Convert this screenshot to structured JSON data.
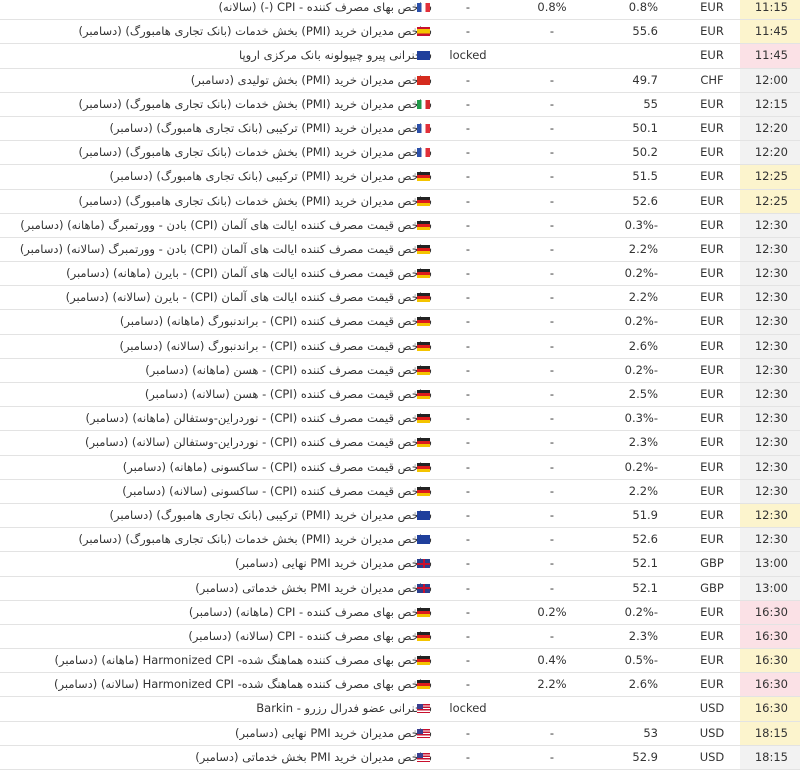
{
  "rows": [
    {
      "time": "11:15",
      "currency": "EUR",
      "previous": "0.8%",
      "forecast": "0.8%",
      "actual": "-",
      "event": "شاخص بهای مصرف کننده - CPI (-) (سالانه)"
    },
    {
      "time": "11:45",
      "currency": "EUR",
      "previous": "55.6",
      "forecast": "-",
      "actual": "-",
      "event": "شاخص مدیران خرید (PMI) بخش خدمات (بانک تجاری هامبورگ) (دسامبر)"
    },
    {
      "time": "11:45",
      "currency": "EUR",
      "actual": "locked",
      "event": "سخنرانی پیرو چیپولونه بانک مرکزی اروپا"
    },
    {
      "time": "12:00",
      "currency": "CHF",
      "previous": "49.7",
      "forecast": "-",
      "actual": "-",
      "event": "شاخص مدیران خرید (PMI) بخش تولیدی (دسامبر)"
    },
    {
      "time": "12:15",
      "currency": "EUR",
      "previous": "55",
      "forecast": "-",
      "actual": "-",
      "event": "شاخص مدیران خرید (PMI) بخش خدمات (بانک تجاری هامبورگ) (دسامبر)"
    },
    {
      "time": "12:20",
      "currency": "EUR",
      "previous": "50.1",
      "forecast": "-",
      "actual": "-",
      "event": "شاخص مدیران خرید (PMI) ترکیبی (بانک تجاری هامبورگ) (دسامبر)"
    },
    {
      "time": "12:20",
      "currency": "EUR",
      "previous": "50.2",
      "forecast": "-",
      "actual": "-",
      "event": "شاخص مدیران خرید (PMI) بخش خدمات (بانک تجاری هامبورگ) (دسامبر)"
    },
    {
      "time": "12:25",
      "currency": "EUR",
      "previous": "51.5",
      "forecast": "-",
      "actual": "-",
      "event": "شاخص مدیران خرید (PMI) ترکیبی (بانک تجاری هامبورگ) (دسامبر)"
    },
    {
      "time": "12:25",
      "currency": "EUR",
      "previous": "52.6",
      "forecast": "-",
      "actual": "-",
      "event": "شاخص مدیران خرید (PMI) بخش خدمات (بانک تجاری هامبورگ) (دسامبر)"
    },
    {
      "time": "12:30",
      "currency": "EUR",
      "previous": "0.3%-",
      "forecast": "-",
      "actual": "-",
      "event": "شاخص قیمت مصرف کننده ایالت های آلمان (CPI) بادن - وورتمبرگ (ماهانه) (دسامبر)"
    },
    {
      "time": "12:30",
      "currency": "EUR",
      "previous": "2.2%",
      "forecast": "-",
      "actual": "-",
      "event": "شاخص قیمت مصرف کننده ایالت های آلمان (CPI) بادن - وورتمبرگ (سالانه) (دسامبر)"
    },
    {
      "time": "12:30",
      "currency": "EUR",
      "previous": "0.2%-",
      "forecast": "-",
      "actual": "-",
      "event": "شاخص قیمت مصرف کننده ایالت های آلمان (CPI) - بایرن (ماهانه) (دسامبر)"
    },
    {
      "time": "12:30",
      "currency": "EUR",
      "previous": "2.2%",
      "forecast": "-",
      "actual": "-",
      "event": "شاخص قیمت مصرف کننده ایالت های آلمان (CPI) - بایرن (سالانه) (دسامبر)"
    },
    {
      "time": "12:30",
      "currency": "EUR",
      "previous": "0.2%-",
      "forecast": "-",
      "actual": "-",
      "event": "شاخص قیمت مصرف کننده (CPI) - براندنبورگ (ماهانه) (دسامبر)"
    },
    {
      "time": "12:30",
      "currency": "EUR",
      "previous": "2.6%",
      "forecast": "-",
      "actual": "-",
      "event": "شاخص قیمت مصرف کننده (CPI) - براندنبورگ (سالانه) (دسامبر)"
    },
    {
      "time": "12:30",
      "currency": "EUR",
      "previous": "0.2%-",
      "forecast": "-",
      "actual": "-",
      "event": "شاخص قیمت مصرف کننده (CPI) - هسن (ماهانه) (دسامبر)"
    },
    {
      "time": "12:30",
      "currency": "EUR",
      "previous": "2.5%",
      "forecast": "-",
      "actual": "-",
      "event": "شاخص قیمت مصرف کننده (CPI) - هسن (سالانه) (دسامبر)"
    },
    {
      "time": "12:30",
      "currency": "EUR",
      "previous": "0.3%-",
      "forecast": "-",
      "actual": "-",
      "event": "شاخص قیمت مصرف کننده (CPI) - نوردراین-وستفالن (ماهانه) (دسامبر)"
    },
    {
      "time": "12:30",
      "currency": "EUR",
      "previous": "2.3%",
      "forecast": "-",
      "actual": "-",
      "event": "شاخص قیمت مصرف کننده (CPI) - نوردراین-وستفالن (سالانه) (دسامبر)"
    },
    {
      "time": "12:30",
      "currency": "EUR",
      "previous": "0.2%-",
      "forecast": "-",
      "actual": "-",
      "event": "شاخص قیمت مصرف کننده (CPI) - ساکسونی (ماهانه) (دسامبر)"
    },
    {
      "time": "12:30",
      "currency": "EUR",
      "previous": "2.2%",
      "forecast": "-",
      "actual": "-",
      "event": "شاخص قیمت مصرف کننده (CPI) - ساکسونی (سالانه) (دسامبر)"
    },
    {
      "time": "12:30",
      "currency": "EUR",
      "previous": "51.9",
      "forecast": "-",
      "actual": "-",
      "event": "شاخص مدیران خرید (PMI) ترکیبی (بانک تجاری هامبورگ) (دسامبر)"
    },
    {
      "time": "12:30",
      "currency": "EUR",
      "previous": "52.6",
      "forecast": "-",
      "actual": "-",
      "event": "شاخص مدیران خرید (PMI) بخش خدمات (بانک تجاری هامبورگ) (دسامبر)"
    },
    {
      "time": "13:00",
      "currency": "GBP",
      "previous": "52.1",
      "forecast": "-",
      "actual": "-",
      "event": "شاخص مدیران خرید PMI نهایی (دسامبر)"
    },
    {
      "time": "13:00",
      "currency": "GBP",
      "previous": "52.1",
      "forecast": "-",
      "actual": "-",
      "event": "شاخص مدیران خرید PMI بخش خدماتی (دسامبر)"
    },
    {
      "time": "16:30",
      "currency": "EUR",
      "previous": "0.2%-",
      "forecast": "0.2%",
      "actual": "-",
      "event": "شاخص بهای مصرف کننده - CPI (ماهانه) (دسامبر)"
    },
    {
      "time": "16:30",
      "currency": "EUR",
      "previous": "2.3%",
      "forecast": "-",
      "actual": "-",
      "event": "شاخص بهای مصرف کننده - CPI (سالانه) (دسامبر)"
    },
    {
      "time": "16:30",
      "currency": "EUR",
      "previous": "0.5%-",
      "forecast": "0.4%",
      "actual": "-",
      "event": "شاخص بهای مصرف کننده هماهنگ شده- Harmonized CPI (ماهانه) (دسامبر)"
    },
    {
      "time": "16:30",
      "currency": "EUR",
      "previous": "2.6%",
      "forecast": "2.2%",
      "actual": "-",
      "event": "شاخص بهای مصرف کننده هماهنگ شده- Harmonized CPI (سالانه) (دسامبر)"
    },
    {
      "time": "16:30",
      "currency": "USD",
      "actual": "locked",
      "event": "سخنرانی عضو فدرال رزرو - Barkin"
    },
    {
      "time": "18:15",
      "currency": "USD",
      "previous": "53",
      "forecast": "-",
      "actual": "-",
      "event": "شاخص مدیران خرید PMI نهایی (دسامبر)"
    },
    {
      "time": "18:15",
      "currency": "USD",
      "previous": "52.9",
      "forecast": "-",
      "actual": "-",
      "event": "شاخص مدیران خرید PMI بخش خدماتی (دسامبر)"
    }
  ]
}
